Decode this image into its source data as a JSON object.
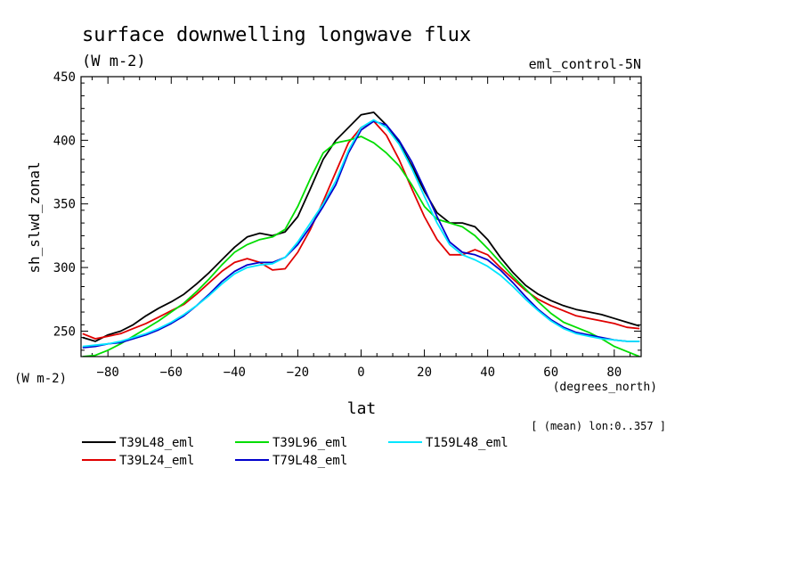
{
  "chart_data": {
    "type": "line",
    "title": "surface downwelling longwave flux",
    "subtitle": "(W m-2)",
    "experiment": "eml_control-5N",
    "ylabel": "sh_slwd_zonal",
    "yunits": "(W m-2)",
    "xlabel": "lat",
    "xunits": "(degrees_north)",
    "note": "[ (mean) lon:0..357 ]",
    "xlim": [
      -88.5,
      88.5
    ],
    "ylim": [
      230,
      450
    ],
    "xticks": [
      -80,
      -60,
      -40,
      -20,
      0,
      20,
      40,
      60,
      80
    ],
    "yticks": [
      250,
      300,
      350,
      400,
      450
    ],
    "grid": false,
    "legend_position": "bottom-left",
    "series": [
      {
        "name": "T39L48_eml",
        "color": "#000000",
        "x": [
          -88,
          -84,
          -80,
          -76,
          -72,
          -68,
          -64,
          -60,
          -56,
          -52,
          -48,
          -44,
          -40,
          -36,
          -32,
          -28,
          -24,
          -20,
          -16,
          -12,
          -8,
          -4,
          0,
          4,
          8,
          12,
          16,
          20,
          24,
          28,
          32,
          36,
          40,
          44,
          48,
          52,
          56,
          60,
          64,
          68,
          72,
          76,
          80,
          84,
          88
        ],
        "y": [
          245,
          242,
          247,
          250,
          255,
          262,
          268,
          273,
          279,
          287,
          296,
          306,
          316,
          324,
          327,
          325,
          328,
          340,
          362,
          385,
          400,
          410,
          420,
          422,
          412,
          398,
          380,
          360,
          343,
          335,
          335,
          332,
          322,
          308,
          296,
          286,
          279,
          274,
          270,
          267,
          265,
          263,
          260,
          257,
          254
        ]
      },
      {
        "name": "T39L24_eml",
        "color": "#e00000",
        "x": [
          -88,
          -84,
          -80,
          -76,
          -72,
          -68,
          -64,
          -60,
          -56,
          -52,
          -48,
          -44,
          -40,
          -36,
          -32,
          -28,
          -24,
          -20,
          -16,
          -12,
          -8,
          -4,
          0,
          4,
          8,
          12,
          16,
          20,
          24,
          28,
          32,
          36,
          40,
          44,
          48,
          52,
          56,
          60,
          64,
          68,
          72,
          76,
          80,
          84,
          88
        ],
        "y": [
          248,
          244,
          246,
          248,
          252,
          256,
          261,
          266,
          271,
          279,
          288,
          297,
          304,
          307,
          304,
          298,
          299,
          312,
          330,
          352,
          375,
          398,
          410,
          415,
          404,
          385,
          362,
          340,
          322,
          310,
          310,
          314,
          310,
          300,
          291,
          282,
          275,
          270,
          266,
          262,
          260,
          258,
          256,
          253,
          252
        ]
      },
      {
        "name": "T39L96_eml",
        "color": "#00dd00",
        "x": [
          -88,
          -84,
          -80,
          -76,
          -72,
          -68,
          -64,
          -60,
          -56,
          -52,
          -48,
          -44,
          -40,
          -36,
          -32,
          -28,
          -24,
          -20,
          -16,
          -12,
          -8,
          -4,
          0,
          4,
          8,
          12,
          16,
          20,
          24,
          28,
          32,
          36,
          40,
          44,
          48,
          52,
          56,
          60,
          64,
          68,
          72,
          76,
          80,
          84,
          88
        ],
        "y": [
          230,
          231,
          235,
          240,
          246,
          252,
          258,
          265,
          272,
          281,
          291,
          302,
          312,
          318,
          322,
          324,
          330,
          348,
          370,
          390,
          398,
          400,
          403,
          398,
          390,
          380,
          365,
          348,
          338,
          335,
          332,
          325,
          315,
          304,
          293,
          283,
          273,
          264,
          257,
          253,
          249,
          244,
          238,
          234,
          230
        ]
      },
      {
        "name": "T79L48_eml",
        "color": "#0000cc",
        "x": [
          -88,
          -84,
          -80,
          -76,
          -72,
          -68,
          -64,
          -60,
          -56,
          -52,
          -48,
          -44,
          -40,
          -36,
          -32,
          -28,
          -24,
          -20,
          -16,
          -12,
          -8,
          -4,
          0,
          4,
          8,
          12,
          16,
          20,
          24,
          28,
          32,
          36,
          40,
          44,
          48,
          52,
          56,
          60,
          64,
          68,
          72,
          76,
          80,
          84,
          88
        ],
        "y": [
          237,
          238,
          240,
          241,
          244,
          247,
          251,
          256,
          262,
          270,
          279,
          289,
          297,
          302,
          304,
          304,
          308,
          318,
          332,
          348,
          365,
          390,
          408,
          415,
          412,
          400,
          383,
          362,
          340,
          320,
          312,
          310,
          306,
          298,
          288,
          277,
          267,
          259,
          253,
          249,
          247,
          245,
          243,
          242,
          242
        ]
      },
      {
        "name": "T159L48_eml",
        "color": "#00e6ff",
        "x": [
          -88,
          -84,
          -80,
          -76,
          -72,
          -68,
          -64,
          -60,
          -56,
          -52,
          -48,
          -44,
          -40,
          -36,
          -32,
          -28,
          -24,
          -20,
          -16,
          -12,
          -8,
          -4,
          0,
          4,
          8,
          12,
          16,
          20,
          24,
          28,
          32,
          36,
          40,
          44,
          48,
          52,
          56,
          60,
          64,
          68,
          72,
          76,
          80,
          84,
          88
        ],
        "y": [
          238,
          239,
          240,
          242,
          245,
          248,
          252,
          257,
          263,
          270,
          278,
          287,
          295,
          300,
          302,
          303,
          308,
          320,
          335,
          350,
          368,
          392,
          410,
          416,
          410,
          397,
          378,
          356,
          335,
          318,
          310,
          306,
          301,
          294,
          285,
          275,
          266,
          258,
          252,
          248,
          246,
          244,
          243,
          242,
          242
        ]
      }
    ]
  }
}
